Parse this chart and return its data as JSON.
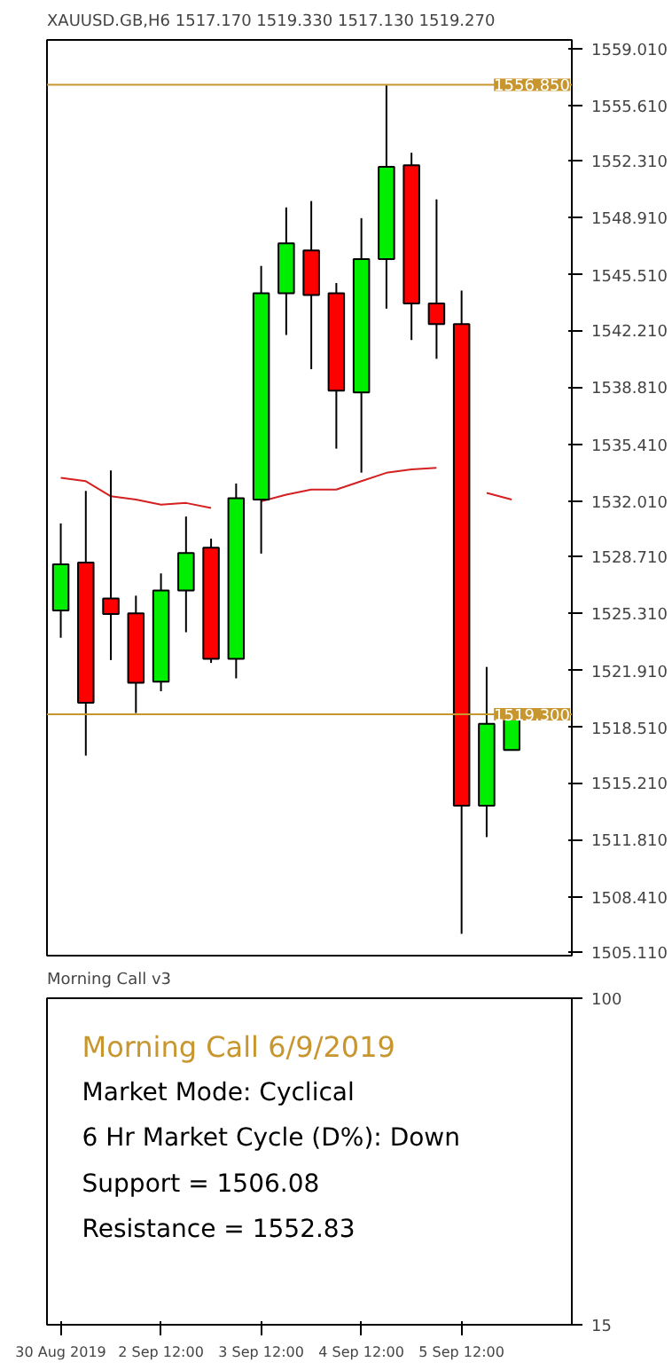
{
  "chart_data": [
    {
      "type": "candlestick",
      "title": "XAUUSD.GB,H6  1517.170 1519.330 1517.130 1519.270",
      "ohlc": [
        [
          1525.49,
          1530.68,
          1523.86,
          1528.24
        ],
        [
          1528.34,
          1532.62,
          1516.83,
          1519.98
        ],
        [
          1526.2,
          1533.84,
          1522.53,
          1525.28
        ],
        [
          1525.31,
          1526.37,
          1519.37,
          1521.18
        ],
        [
          1521.24,
          1527.7,
          1520.67,
          1526.68
        ],
        [
          1526.68,
          1531.09,
          1524.19,
          1528.92
        ],
        [
          1529.23,
          1529.77,
          1522.36,
          1522.6
        ],
        [
          1522.6,
          1533.06,
          1521.44,
          1532.18
        ],
        [
          1532.11,
          1546.04,
          1528.88,
          1544.41
        ],
        [
          1544.41,
          1549.53,
          1541.92,
          1547.39
        ],
        [
          1546.96,
          1549.91,
          1539.88,
          1544.31
        ],
        [
          1544.41,
          1545.02,
          1535.14,
          1538.6
        ],
        [
          1538.5,
          1548.89,
          1533.71,
          1546.45
        ],
        [
          1546.45,
          1556.85,
          1543.49,
          1551.95
        ],
        [
          1552.05,
          1552.79,
          1541.62,
          1543.8
        ],
        [
          1543.8,
          1550.01,
          1540.5,
          1542.57
        ],
        [
          1542.57,
          1544.57,
          1506.2,
          1513.84
        ],
        [
          1513.84,
          1522.12,
          1511.97,
          1518.73
        ],
        [
          1517.17,
          1519.33,
          1517.13,
          1519.27
        ]
      ],
      "colors": [
        "#00ee00",
        "#ff0000",
        "#ff0000",
        "#ff0000",
        "#00ee00",
        "#00ee00",
        "#ff0000",
        "#00ee00",
        "#00ee00",
        "#00ee00",
        "#ff0000",
        "#ff0000",
        "#00ee00",
        "#00ee00",
        "#ff0000",
        "#ff0000",
        "#ff0000",
        "#00ee00",
        "#00ee00"
      ],
      "series": [
        {
          "type": "line",
          "color": "#d42020",
          "values": [
            1533.4,
            1533.2,
            1532.3,
            1532.1,
            1531.8,
            1531.9,
            1531.6,
            null,
            1532.0,
            1532.4,
            1532.7,
            1532.7,
            1533.2,
            1533.7,
            1533.9,
            1534.0,
            null,
            1532.5,
            1532.1
          ]
        }
      ],
      "ylim": [
        1504.9,
        1559.52
      ],
      "yticks": [
        {
          "value": 1559.01,
          "label": "1559.010"
        },
        {
          "value": 1555.61,
          "label": "1555.610"
        },
        {
          "value": 1552.31,
          "label": "1552.310"
        },
        {
          "value": 1548.91,
          "label": "1548.910"
        },
        {
          "value": 1545.51,
          "label": "1545.510"
        },
        {
          "value": 1542.21,
          "label": "1542.210"
        },
        {
          "value": 1538.81,
          "label": "1538.810"
        },
        {
          "value": 1535.41,
          "label": "1535.410"
        },
        {
          "value": 1532.01,
          "label": "1532.010"
        },
        {
          "value": 1528.71,
          "label": "1528.710"
        },
        {
          "value": 1525.31,
          "label": "1525.310"
        },
        {
          "value": 1521.91,
          "label": "1521.910"
        },
        {
          "value": 1518.51,
          "label": "1518.510"
        },
        {
          "value": 1515.21,
          "label": "1515.210"
        },
        {
          "value": 1511.81,
          "label": "1511.810"
        },
        {
          "value": 1508.41,
          "label": "1508.410"
        },
        {
          "value": 1505.11,
          "label": "1505.110"
        }
      ],
      "ref_lines": [
        {
          "axis": "y",
          "value": 1556.85,
          "label": "1556.850",
          "color": "#c8962e"
        },
        {
          "axis": "y",
          "value": 1519.3,
          "label": "1519.300",
          "color": "#c8962e"
        }
      ],
      "tick_labels": "y"
    },
    {
      "type": "line",
      "title": "Morning Call v3",
      "subtitle": "Morning Call 6/9/2019",
      "annotations": [
        "Market Mode: Cyclical",
        "6 Hr Market Cycle (D%): Down",
        "Support = 1506.08",
        "Resistance = 1552.83"
      ],
      "categories": [
        "30 Aug 2019",
        null,
        null,
        null,
        "2 Sep 12:00",
        null,
        null,
        null,
        "3 Sep 12:00",
        null,
        null,
        null,
        "4 Sep 12:00",
        null,
        null,
        null,
        "5 Sep 12:00",
        null,
        null
      ],
      "ylim": [
        15,
        100
      ],
      "yticks": [
        100,
        15
      ]
    }
  ]
}
